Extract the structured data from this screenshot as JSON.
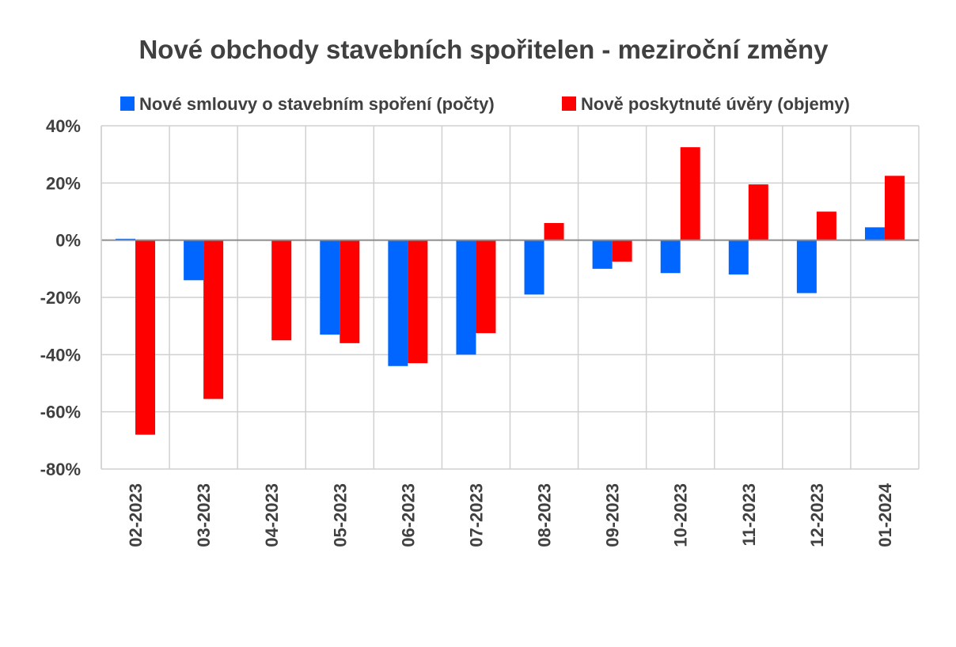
{
  "chart_data": {
    "type": "bar",
    "title": "Nové obchody stavebních spořitelen - meziroční změny",
    "xlabel": "",
    "ylabel": "",
    "categories": [
      "02-2023",
      "03-2023",
      "04-2023",
      "05-2023",
      "06-2023",
      "07-2023",
      "08-2023",
      "09-2023",
      "10-2023",
      "11-2023",
      "12-2023",
      "01-2024"
    ],
    "series": [
      {
        "name": "Nové smlouvy o stavebním spoření (počty)",
        "color": "#0066ff",
        "values": [
          0.5,
          -14,
          0,
          -33,
          -44,
          -40,
          -19,
          -10,
          -11.5,
          -12,
          -18.5,
          4.5
        ]
      },
      {
        "name": "Nově poskytnuté úvěry (objemy)",
        "color": "#ff0000",
        "values": [
          -68,
          -55.5,
          -35,
          -36,
          -43,
          -32.5,
          6,
          -7.5,
          32.5,
          19.5,
          10,
          22.5
        ]
      }
    ],
    "ylim": [
      -80,
      40
    ],
    "yticks": [
      40,
      20,
      0,
      -20,
      -40,
      -60,
      -80
    ],
    "ytick_labels": [
      "40%",
      "20%",
      "0%",
      "-20%",
      "-40%",
      "-60%",
      "-80%"
    ],
    "grid": true,
    "legend_position": "top"
  }
}
